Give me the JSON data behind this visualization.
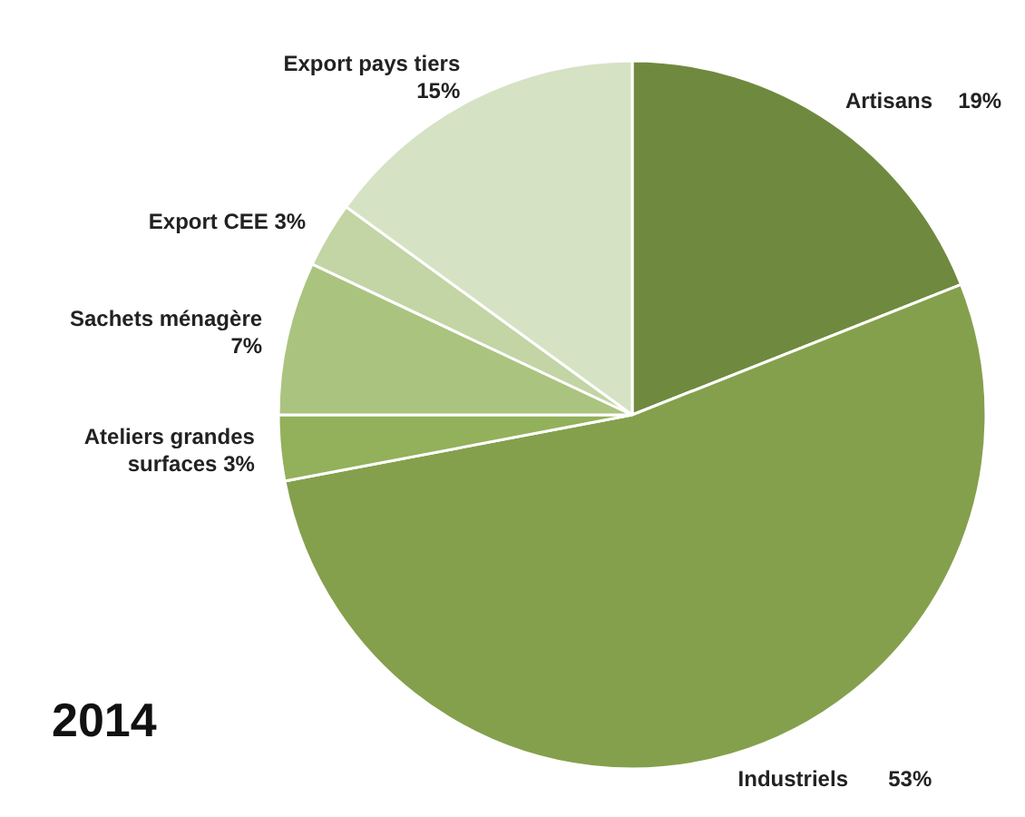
{
  "chart_data": {
    "type": "pie",
    "title": "2014",
    "categories": [
      "Artisans",
      "Industriels",
      "Ateliers grandes surfaces",
      "Sachets ménagère",
      "Export CEE",
      "Export pays tiers"
    ],
    "values": [
      19,
      53,
      3,
      7,
      3,
      15
    ],
    "colors": [
      "#6f8a3e",
      "#84a04c",
      "#93b05a",
      "#aac47f",
      "#c3d4a5",
      "#d6e2c4"
    ],
    "value_labels": [
      "19%",
      "53%",
      "3%",
      "7%",
      "3%",
      "15%"
    ]
  }
}
